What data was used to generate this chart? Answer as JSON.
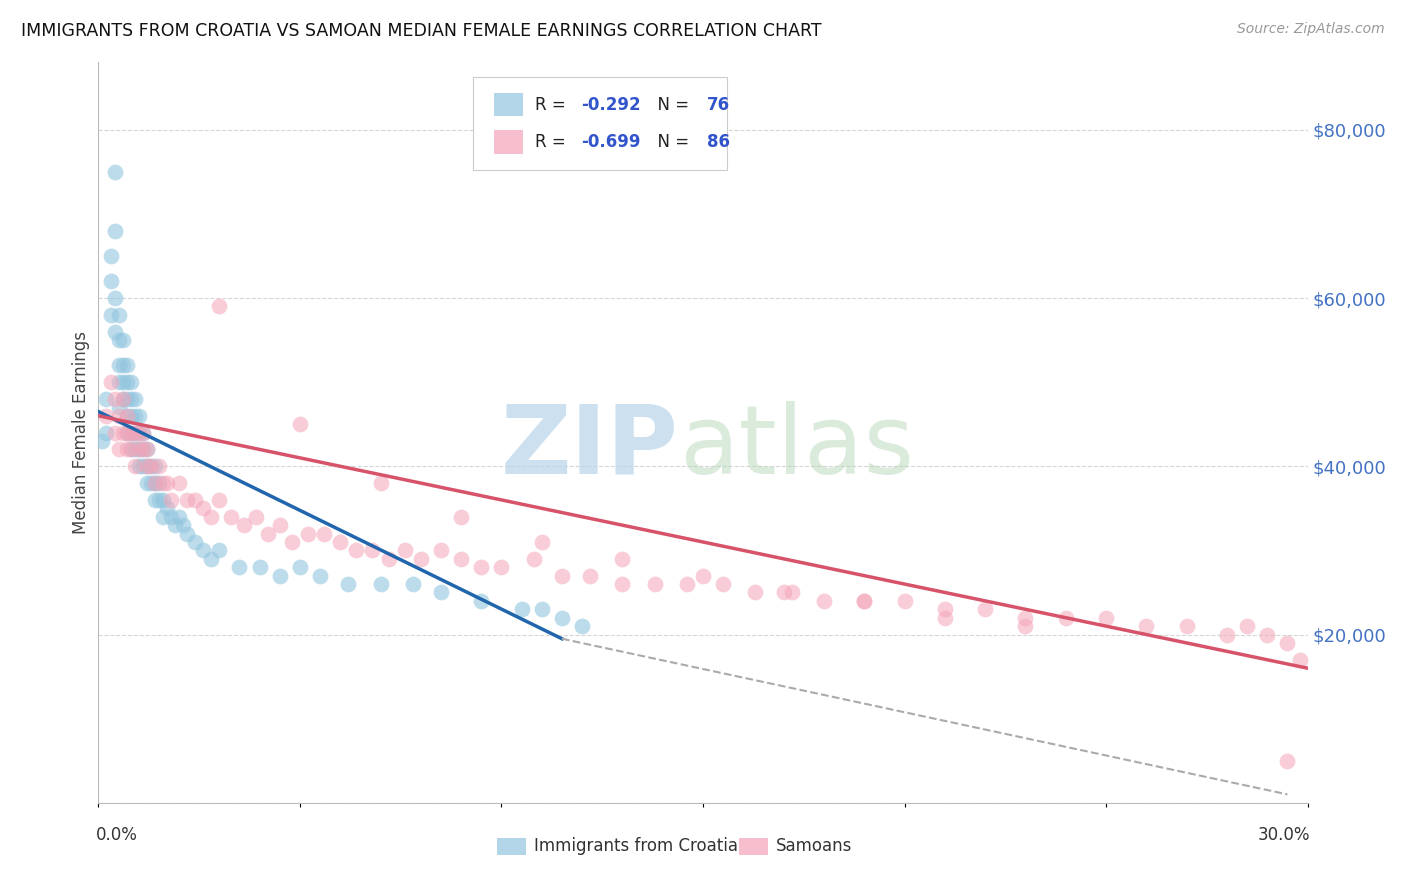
{
  "title": "IMMIGRANTS FROM CROATIA VS SAMOAN MEDIAN FEMALE EARNINGS CORRELATION CHART",
  "source": "Source: ZipAtlas.com",
  "ylabel": "Median Female Earnings",
  "yticks": [
    0,
    20000,
    40000,
    60000,
    80000
  ],
  "ytick_labels": [
    "",
    "$20,000",
    "$40,000",
    "$60,000",
    "$80,000"
  ],
  "xlim": [
    0,
    0.3
  ],
  "ylim": [
    0,
    88000
  ],
  "legend_label1": "Immigrants from Croatia",
  "legend_label2": "Samoans",
  "blue_color": "#92c5de",
  "pink_color": "#f4a5b8",
  "blue_line_color": "#2166ac",
  "pink_line_color": "#d6536a",
  "background_color": "#ffffff",
  "grid_color": "#cccccc",
  "blue_scatter_x": [
    0.001,
    0.002,
    0.002,
    0.003,
    0.003,
    0.003,
    0.004,
    0.004,
    0.004,
    0.004,
    0.005,
    0.005,
    0.005,
    0.005,
    0.005,
    0.006,
    0.006,
    0.006,
    0.006,
    0.007,
    0.007,
    0.007,
    0.007,
    0.007,
    0.008,
    0.008,
    0.008,
    0.008,
    0.008,
    0.009,
    0.009,
    0.009,
    0.009,
    0.01,
    0.01,
    0.01,
    0.01,
    0.011,
    0.011,
    0.011,
    0.012,
    0.012,
    0.012,
    0.013,
    0.013,
    0.014,
    0.014,
    0.014,
    0.015,
    0.015,
    0.016,
    0.016,
    0.017,
    0.018,
    0.019,
    0.02,
    0.021,
    0.022,
    0.024,
    0.026,
    0.028,
    0.03,
    0.035,
    0.04,
    0.045,
    0.05,
    0.055,
    0.062,
    0.07,
    0.078,
    0.085,
    0.095,
    0.105,
    0.11,
    0.115,
    0.12
  ],
  "blue_scatter_y": [
    43000,
    48000,
    44000,
    65000,
    62000,
    58000,
    75000,
    68000,
    60000,
    56000,
    58000,
    55000,
    52000,
    50000,
    47000,
    55000,
    52000,
    50000,
    48000,
    52000,
    50000,
    48000,
    46000,
    44000,
    50000,
    48000,
    46000,
    44000,
    42000,
    48000,
    46000,
    44000,
    42000,
    46000,
    44000,
    42000,
    40000,
    44000,
    42000,
    40000,
    42000,
    40000,
    38000,
    40000,
    38000,
    40000,
    38000,
    36000,
    38000,
    36000,
    36000,
    34000,
    35000,
    34000,
    33000,
    34000,
    33000,
    32000,
    31000,
    30000,
    29000,
    30000,
    28000,
    28000,
    27000,
    28000,
    27000,
    26000,
    26000,
    26000,
    25000,
    24000,
    23000,
    23000,
    22000,
    21000
  ],
  "pink_scatter_x": [
    0.002,
    0.003,
    0.004,
    0.004,
    0.005,
    0.005,
    0.006,
    0.006,
    0.007,
    0.007,
    0.007,
    0.008,
    0.008,
    0.009,
    0.009,
    0.01,
    0.01,
    0.011,
    0.011,
    0.012,
    0.012,
    0.013,
    0.014,
    0.015,
    0.016,
    0.017,
    0.018,
    0.02,
    0.022,
    0.024,
    0.026,
    0.028,
    0.03,
    0.033,
    0.036,
    0.039,
    0.042,
    0.045,
    0.048,
    0.052,
    0.056,
    0.06,
    0.064,
    0.068,
    0.072,
    0.076,
    0.08,
    0.085,
    0.09,
    0.095,
    0.1,
    0.108,
    0.115,
    0.122,
    0.13,
    0.138,
    0.146,
    0.155,
    0.163,
    0.172,
    0.18,
    0.19,
    0.2,
    0.21,
    0.22,
    0.23,
    0.24,
    0.25,
    0.26,
    0.27,
    0.28,
    0.285,
    0.29,
    0.295,
    0.03,
    0.05,
    0.07,
    0.09,
    0.11,
    0.13,
    0.15,
    0.17,
    0.19,
    0.21,
    0.23,
    0.295,
    0.298
  ],
  "pink_scatter_y": [
    46000,
    50000,
    48000,
    44000,
    46000,
    42000,
    48000,
    44000,
    46000,
    44000,
    42000,
    44000,
    42000,
    44000,
    40000,
    44000,
    42000,
    44000,
    42000,
    42000,
    40000,
    40000,
    38000,
    40000,
    38000,
    38000,
    36000,
    38000,
    36000,
    36000,
    35000,
    34000,
    36000,
    34000,
    33000,
    34000,
    32000,
    33000,
    31000,
    32000,
    32000,
    31000,
    30000,
    30000,
    29000,
    30000,
    29000,
    30000,
    29000,
    28000,
    28000,
    29000,
    27000,
    27000,
    26000,
    26000,
    26000,
    26000,
    25000,
    25000,
    24000,
    24000,
    24000,
    23000,
    23000,
    22000,
    22000,
    22000,
    21000,
    21000,
    20000,
    21000,
    20000,
    19000,
    59000,
    45000,
    38000,
    34000,
    31000,
    29000,
    27000,
    25000,
    24000,
    22000,
    21000,
    5000,
    17000
  ],
  "blue_trend_x": [
    0.0,
    0.115
  ],
  "blue_trend_y": [
    46500,
    19500
  ],
  "pink_trend_x": [
    0.0,
    0.3
  ],
  "pink_trend_y": [
    46000,
    16000
  ],
  "dash_trend_x": [
    0.115,
    0.295
  ],
  "dash_trend_y": [
    19500,
    1000
  ]
}
